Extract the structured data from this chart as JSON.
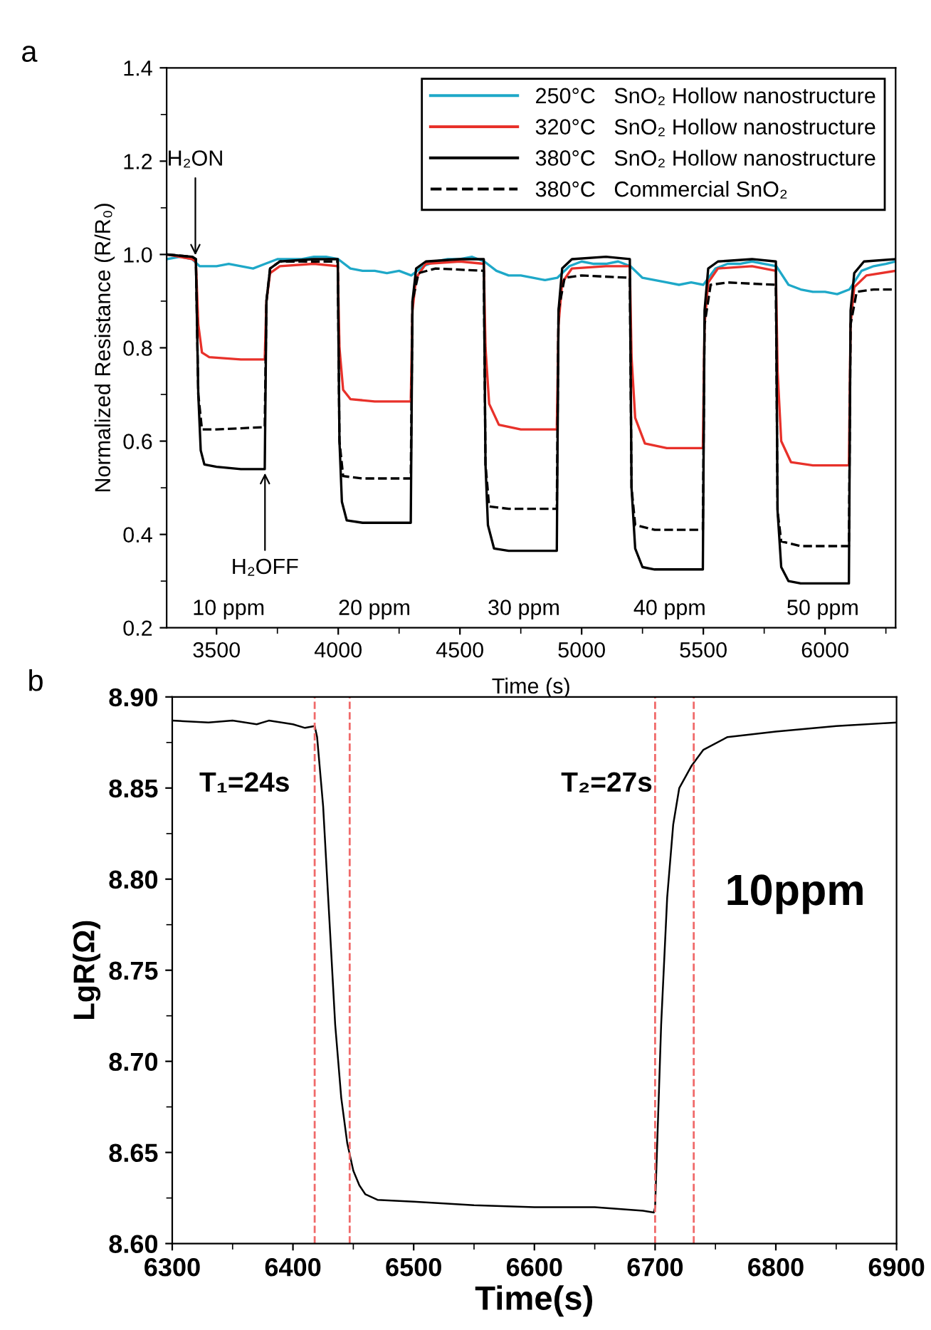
{
  "chart_data": [
    {
      "type": "line",
      "xlabel": "Time (s)",
      "ylabel": "Normalized Resistance (R/R₀)",
      "xlim": [
        3295,
        6290
      ],
      "ylim": [
        0.2,
        1.4
      ],
      "xticks": [
        3500,
        4000,
        4500,
        5000,
        5500,
        6000,
        {
          "value": 3750,
          "label": null
        },
        {
          "value": 4250,
          "label": null
        },
        {
          "value": 4750,
          "label": null
        },
        {
          "value": 5250,
          "label": null
        },
        {
          "value": 5750,
          "label": null
        },
        {
          "value": 6250,
          "label": null
        }
      ],
      "yticks": [
        0.2,
        0.4,
        0.6,
        0.8,
        {
          "value": 1.0,
          "label": "1.0"
        },
        1.2,
        1.4,
        {
          "value": 0.3,
          "label": null
        },
        {
          "value": 0.5,
          "label": null
        },
        {
          "value": 0.7,
          "label": null
        },
        {
          "value": 0.9,
          "label": null
        },
        {
          "value": 1.1,
          "label": null
        },
        {
          "value": 1.3,
          "label": null
        }
      ],
      "legend": "top right",
      "grid": false,
      "series": [
        {
          "name": "250°C   SnO₂ Hollow nanostructure",
          "color": "#1ea8c8",
          "line_style": "solid",
          "x": [
            3295,
            3350,
            3400,
            3430,
            3500,
            3550,
            3600,
            3650,
            3700,
            3750,
            3800,
            3850,
            3900,
            3950,
            4000,
            4050,
            4100,
            4150,
            4200,
            4250,
            4300,
            4350,
            4400,
            4450,
            4500,
            4550,
            4600,
            4650,
            4700,
            4750,
            4800,
            4850,
            4900,
            4950,
            5000,
            5050,
            5100,
            5150,
            5200,
            5250,
            5300,
            5350,
            5400,
            5450,
            5500,
            5550,
            5600,
            5650,
            5700,
            5750,
            5800,
            5850,
            5900,
            5950,
            6000,
            6050,
            6100,
            6150,
            6200,
            6250,
            6290
          ],
          "values": [
            0.99,
            0.995,
            0.99,
            0.975,
            0.975,
            0.98,
            0.975,
            0.97,
            0.98,
            0.99,
            0.99,
            0.99,
            0.995,
            0.995,
            0.99,
            0.97,
            0.965,
            0.965,
            0.96,
            0.965,
            0.955,
            0.975,
            0.985,
            0.99,
            0.99,
            0.995,
            0.985,
            0.965,
            0.955,
            0.955,
            0.95,
            0.945,
            0.95,
            0.975,
            0.985,
            0.98,
            0.98,
            0.985,
            0.975,
            0.95,
            0.945,
            0.94,
            0.935,
            0.94,
            0.935,
            0.97,
            0.98,
            0.98,
            0.985,
            0.98,
            0.975,
            0.935,
            0.925,
            0.92,
            0.92,
            0.915,
            0.925,
            0.965,
            0.975,
            0.98,
            0.985
          ]
        },
        {
          "name": "320°C   SnO₂ Hollow nanostructure",
          "color": "#e8312a",
          "line_style": "solid",
          "x": [
            3295,
            3400,
            3415,
            3425,
            3440,
            3470,
            3600,
            3698,
            3705,
            3720,
            3760,
            3900,
            3998,
            4005,
            4020,
            4050,
            4150,
            4298,
            4305,
            4320,
            4360,
            4500,
            4598,
            4605,
            4620,
            4660,
            4750,
            4898,
            4905,
            4920,
            4960,
            5100,
            5198,
            5205,
            5220,
            5260,
            5350,
            5498,
            5505,
            5520,
            5560,
            5700,
            5798,
            5805,
            5820,
            5860,
            5950,
            6098,
            6105,
            6120,
            6170,
            6290
          ],
          "values": [
            1.0,
            0.99,
            0.985,
            0.85,
            0.79,
            0.78,
            0.775,
            0.775,
            0.9,
            0.96,
            0.975,
            0.98,
            0.975,
            0.8,
            0.71,
            0.69,
            0.685,
            0.685,
            0.88,
            0.95,
            0.98,
            0.985,
            0.98,
            0.8,
            0.68,
            0.635,
            0.625,
            0.625,
            0.85,
            0.94,
            0.97,
            0.975,
            0.975,
            0.78,
            0.65,
            0.595,
            0.585,
            0.585,
            0.85,
            0.94,
            0.97,
            0.975,
            0.965,
            0.75,
            0.6,
            0.555,
            0.548,
            0.548,
            0.85,
            0.93,
            0.955,
            0.965
          ]
        },
        {
          "name": "380°C   SnO₂ Hollow nanostructure",
          "color": "#000000",
          "line_style": "solid",
          "x": [
            3295,
            3400,
            3415,
            3425,
            3435,
            3450,
            3500,
            3600,
            3698,
            3705,
            3720,
            3760,
            3900,
            3998,
            4005,
            4015,
            4035,
            4100,
            4298,
            4305,
            4320,
            4360,
            4500,
            4598,
            4605,
            4615,
            4640,
            4700,
            4898,
            4905,
            4920,
            4960,
            5100,
            5198,
            5205,
            5220,
            5250,
            5300,
            5498,
            5505,
            5520,
            5560,
            5700,
            5798,
            5805,
            5820,
            5850,
            5900,
            6098,
            6105,
            6120,
            6160,
            6290
          ],
          "values": [
            1.0,
            0.995,
            0.99,
            0.7,
            0.58,
            0.55,
            0.545,
            0.54,
            0.54,
            0.9,
            0.97,
            0.985,
            0.99,
            0.99,
            0.6,
            0.47,
            0.43,
            0.425,
            0.425,
            0.9,
            0.97,
            0.985,
            0.99,
            0.99,
            0.55,
            0.42,
            0.37,
            0.365,
            0.365,
            0.88,
            0.97,
            0.99,
            0.995,
            0.99,
            0.5,
            0.37,
            0.33,
            0.325,
            0.325,
            0.88,
            0.97,
            0.985,
            0.99,
            0.985,
            0.45,
            0.33,
            0.3,
            0.295,
            0.295,
            0.88,
            0.96,
            0.985,
            0.99
          ]
        },
        {
          "name": "380°C   Commercial SnO₂",
          "color": "#000000",
          "line_style": "dashed",
          "x": [
            3295,
            3400,
            3415,
            3425,
            3440,
            3500,
            3698,
            3705,
            3720,
            3760,
            3998,
            4005,
            4020,
            4100,
            4298,
            4305,
            4330,
            4400,
            4598,
            4605,
            4620,
            4700,
            4898,
            4905,
            4930,
            5000,
            5198,
            5205,
            5220,
            5300,
            5498,
            5505,
            5530,
            5600,
            5798,
            5805,
            5820,
            5900,
            6098,
            6105,
            6130,
            6200,
            6290
          ],
          "values": [
            1.0,
            0.995,
            0.99,
            0.7,
            0.625,
            0.625,
            0.63,
            0.9,
            0.97,
            0.985,
            0.985,
            0.6,
            0.525,
            0.52,
            0.52,
            0.9,
            0.96,
            0.97,
            0.965,
            0.55,
            0.46,
            0.455,
            0.455,
            0.88,
            0.95,
            0.955,
            0.95,
            0.5,
            0.42,
            0.41,
            0.41,
            0.85,
            0.935,
            0.94,
            0.935,
            0.45,
            0.385,
            0.375,
            0.375,
            0.85,
            0.92,
            0.925,
            0.925
          ]
        }
      ],
      "annotations": [
        "a",
        {
          "text": "H₂ON",
          "x": 3413,
          "y": 0.99
        },
        {
          "text": "H₂OFF",
          "x": 3699,
          "y": 0.54
        },
        "10 ppm",
        "20 ppm",
        "30 ppm",
        "40 ppm",
        "50 ppm"
      ]
    },
    {
      "type": "line",
      "xlabel": "Time(s)",
      "ylabel": "LgR(Ω)",
      "xlim": [
        6300,
        6900
      ],
      "ylim": [
        8.6,
        8.9
      ],
      "xticks": [
        6300,
        6400,
        6500,
        6600,
        6700,
        6800,
        6900,
        {
          "value": 6350,
          "label": null
        },
        {
          "value": 6450,
          "label": null
        },
        {
          "value": 6550,
          "label": null
        },
        {
          "value": 6650,
          "label": null
        },
        {
          "value": 6750,
          "label": null
        },
        {
          "value": 6850,
          "label": null
        }
      ],
      "yticks": [
        {
          "value": 8.6,
          "label": "8.60"
        },
        8.65,
        {
          "value": 8.7,
          "label": "8.70"
        },
        8.75,
        {
          "value": 8.8,
          "label": "8.80"
        },
        8.85,
        {
          "value": 8.9,
          "label": "8.90"
        },
        {
          "value": 8.625,
          "label": null
        },
        {
          "value": 8.675,
          "label": null
        },
        {
          "value": 8.725,
          "label": null
        },
        {
          "value": 8.775,
          "label": null
        },
        {
          "value": 8.825,
          "label": null
        },
        {
          "value": 8.875,
          "label": null
        }
      ],
      "grid": false,
      "series": [
        {
          "color": "#000000",
          "line_style": "solid",
          "x": [
            6300,
            6330,
            6350,
            6370,
            6380,
            6400,
            6410,
            6418,
            6420,
            6425,
            6430,
            6435,
            6440,
            6445,
            6450,
            6455,
            6460,
            6470,
            6500,
            6550,
            6600,
            6650,
            6690,
            6699,
            6700,
            6705,
            6710,
            6715,
            6720,
            6730,
            6740,
            6760,
            6800,
            6850,
            6900
          ],
          "values": [
            8.887,
            8.886,
            8.887,
            8.885,
            8.887,
            8.885,
            8.883,
            8.884,
            8.878,
            8.84,
            8.78,
            8.72,
            8.68,
            8.655,
            8.64,
            8.632,
            8.627,
            8.624,
            8.623,
            8.621,
            8.62,
            8.62,
            8.618,
            8.617,
            8.62,
            8.72,
            8.79,
            8.83,
            8.85,
            8.862,
            8.871,
            8.878,
            8.881,
            8.884,
            8.886
          ]
        }
      ],
      "ref_lines": [
        {
          "axis": "x",
          "value": 6418,
          "color": "#f06a6a",
          "line_style": "dashed"
        },
        {
          "axis": "x",
          "value": 6447,
          "color": "#f06a6a",
          "line_style": "dashed"
        },
        {
          "axis": "x",
          "value": 6700,
          "color": "#f06a6a",
          "line_style": "dashed"
        },
        {
          "axis": "x",
          "value": 6732,
          "color": "#f06a6a",
          "line_style": "dashed"
        }
      ],
      "annotations": [
        "b",
        "T₁=24s",
        "T₂=27s",
        "10ppm"
      ]
    }
  ]
}
